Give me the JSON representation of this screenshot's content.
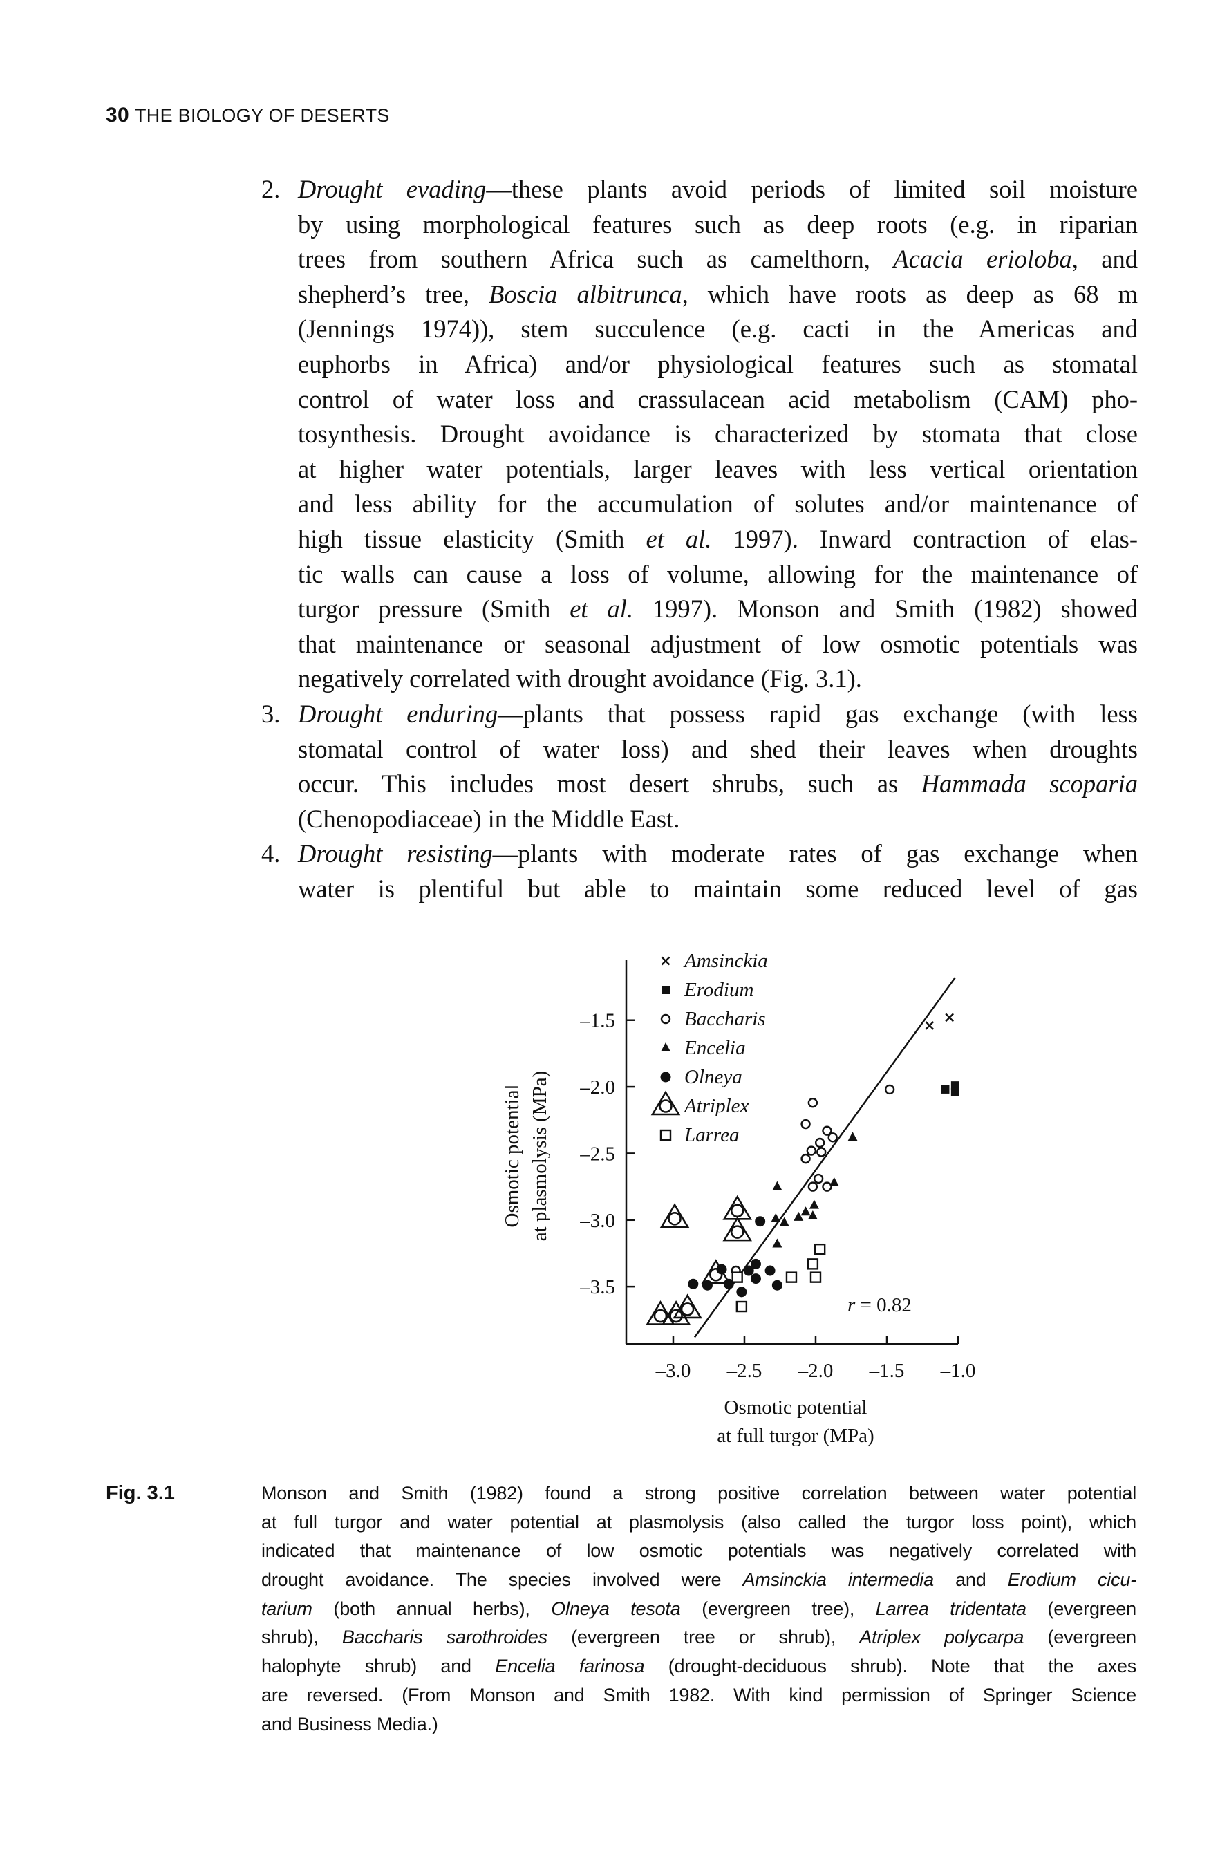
{
  "header": {
    "page_number": "30",
    "running_title": "THE BIOLOGY OF DESERTS"
  },
  "body": {
    "items": [
      {
        "number": "2.",
        "lines": [
          [
            {
              "t": "Drought evading",
              "i": true
            },
            {
              "t": "—these plants avoid periods of limited soil moisture"
            }
          ],
          [
            {
              "t": "by using morphological features such as deep roots (e.g. in riparian"
            }
          ],
          [
            {
              "t": "trees from southern Africa such as camelthorn, "
            },
            {
              "t": "Acacia erioloba",
              "i": true
            },
            {
              "t": ", and"
            }
          ],
          [
            {
              "t": "shepherd’s tree, "
            },
            {
              "t": "Boscia albitrunca",
              "i": true
            },
            {
              "t": ", which have roots as deep as 68 m"
            }
          ],
          [
            {
              "t": "(Jennings 1974)), stem succulence (e.g. cacti in the Americas and"
            }
          ],
          [
            {
              "t": "euphorbs in Africa) and/or physiological features such as stomatal"
            }
          ],
          [
            {
              "t": "control of water loss and crassulacean acid metabolism (CAM) pho-"
            }
          ],
          [
            {
              "t": "tosynthesis. Drought avoidance is characterized by stomata that close"
            }
          ],
          [
            {
              "t": "at higher water potentials, larger leaves with less vertical orientation"
            }
          ],
          [
            {
              "t": "and less ability for the accumulation of solutes and/or maintenance of"
            }
          ],
          [
            {
              "t": "high tissue elasticity (Smith "
            },
            {
              "t": "et al.",
              "i": true
            },
            {
              "t": " 1997). Inward contraction of elas-"
            }
          ],
          [
            {
              "t": "tic walls can cause a loss of volume, allowing for the maintenance of"
            }
          ],
          [
            {
              "t": "turgor pressure (Smith "
            },
            {
              "t": "et al.",
              "i": true
            },
            {
              "t": " 1997). Monson and Smith (1982) showed"
            }
          ],
          [
            {
              "t": "that maintenance or seasonal adjustment of low osmotic potentials was"
            }
          ],
          [
            {
              "t": "negatively correlated with drought avoidance (Fig. 3.1)."
            }
          ]
        ]
      },
      {
        "number": "3.",
        "lines": [
          [
            {
              "t": "Drought enduring",
              "i": true
            },
            {
              "t": "—plants that possess rapid gas exchange (with less"
            }
          ],
          [
            {
              "t": "stomatal control of water loss) and shed their leaves when droughts"
            }
          ],
          [
            {
              "t": "occur. This includes most desert shrubs, such as "
            },
            {
              "t": "Hammada scoparia",
              "i": true
            }
          ],
          [
            {
              "t": "(Chenopodiaceae) in the Middle East."
            }
          ]
        ]
      },
      {
        "number": "4.",
        "lines": [
          [
            {
              "t": "Drought resisting",
              "i": true
            },
            {
              "t": "—plants with moderate rates of gas exchange when"
            }
          ],
          [
            {
              "t": "water is plentiful but able to maintain some reduced level of gas"
            }
          ]
        ],
        "continues": true
      }
    ]
  },
  "figure": {
    "label": "Fig. 3.1",
    "caption_lines": [
      [
        {
          "t": "Monson and Smith (1982) found a strong positive correlation between water potential"
        }
      ],
      [
        {
          "t": "at full turgor and water potential at plasmolysis (also called the turgor loss point), which"
        }
      ],
      [
        {
          "t": "indicated that maintenance of low osmotic potentials was negatively correlated with"
        }
      ],
      [
        {
          "t": "drought avoidance. The species involved were "
        },
        {
          "t": "Amsinckia intermedia",
          "i": true
        },
        {
          "t": " and "
        },
        {
          "t": "Erodium cicu-",
          "i": true
        }
      ],
      [
        {
          "t": "tarium",
          "i": true
        },
        {
          "t": " (both annual herbs), "
        },
        {
          "t": "Olneya tesota",
          "i": true
        },
        {
          "t": " (evergreen tree), "
        },
        {
          "t": "Larrea tridentata",
          "i": true
        },
        {
          "t": " (evergreen"
        }
      ],
      [
        {
          "t": "shrub), "
        },
        {
          "t": "Baccharis sarothroides",
          "i": true
        },
        {
          "t": " (evergreen tree or shrub), "
        },
        {
          "t": "Atriplex polycarpa",
          "i": true
        },
        {
          "t": " (evergreen"
        }
      ],
      [
        {
          "t": "halophyte shrub) and "
        },
        {
          "t": "Encelia farinosa",
          "i": true
        },
        {
          "t": " (drought-deciduous shrub). Note that the axes"
        }
      ],
      [
        {
          "t": "are reversed. (From Monson and Smith 1982. With kind permission of Springer Science"
        }
      ],
      [
        {
          "t": "and Business Media.)"
        }
      ]
    ]
  },
  "chart_data": {
    "type": "scatter",
    "xlabel": [
      "Osmotic potential",
      "at full turgor (MPa)"
    ],
    "ylabel": [
      "Osmotic potential",
      "at plasmolysis (MPa)"
    ],
    "xlim": [
      -3.33,
      -1.0
    ],
    "ylim": [
      -3.93,
      -1.05
    ],
    "xticks": [
      -3.0,
      -2.5,
      -2.0,
      -1.5,
      -1.0
    ],
    "xtick_labels": [
      "–3.0",
      "–2.5",
      "–2.0",
      "–1.5",
      "–1.0"
    ],
    "yticks": [
      -1.5,
      -2.0,
      -2.5,
      -3.0,
      -3.5
    ],
    "ytick_labels": [
      "–1.5",
      "–2.0",
      "–2.5",
      "–3.0",
      "–3.5"
    ],
    "grid": false,
    "legend_position": "top-left",
    "annotation": {
      "r_label": "r",
      "r_value": " = 0.82"
    },
    "regression_line": {
      "x": [
        -2.85,
        -1.02
      ],
      "y": [
        -3.88,
        -1.18
      ]
    },
    "series": [
      {
        "name": "Amsinckia",
        "marker": "cross",
        "points": [
          [
            -1.2,
            -1.54
          ],
          [
            -1.06,
            -1.48
          ]
        ]
      },
      {
        "name": "Erodium",
        "marker": "filled-square",
        "points": [
          [
            -1.09,
            -2.02
          ],
          [
            -1.02,
            -1.99
          ],
          [
            -1.02,
            -2.04
          ]
        ]
      },
      {
        "name": "Baccharis",
        "marker": "open-circle",
        "points": [
          [
            -1.48,
            -2.02
          ],
          [
            -2.02,
            -2.12
          ],
          [
            -2.07,
            -2.28
          ],
          [
            -1.92,
            -2.33
          ],
          [
            -1.88,
            -2.38
          ],
          [
            -1.97,
            -2.42
          ],
          [
            -2.03,
            -2.48
          ],
          [
            -1.96,
            -2.49
          ],
          [
            -2.07,
            -2.54
          ],
          [
            -1.98,
            -2.69
          ],
          [
            -2.02,
            -2.75
          ],
          [
            -1.92,
            -2.75
          ],
          [
            -2.56,
            -3.38
          ]
        ]
      },
      {
        "name": "Encelia",
        "marker": "filled-triangle",
        "points": [
          [
            -1.74,
            -2.38
          ],
          [
            -2.27,
            -2.75
          ],
          [
            -1.87,
            -2.72
          ],
          [
            -2.01,
            -2.89
          ],
          [
            -2.07,
            -2.94
          ],
          [
            -2.02,
            -2.97
          ],
          [
            -2.12,
            -2.98
          ],
          [
            -2.28,
            -2.99
          ],
          [
            -2.22,
            -3.02
          ],
          [
            -2.27,
            -3.18
          ]
        ]
      },
      {
        "name": "Olneya",
        "marker": "filled-circle",
        "points": [
          [
            -2.39,
            -3.01
          ],
          [
            -2.42,
            -3.33
          ],
          [
            -2.32,
            -3.38
          ],
          [
            -2.47,
            -3.38
          ],
          [
            -2.66,
            -3.37
          ],
          [
            -2.42,
            -3.44
          ],
          [
            -2.86,
            -3.48
          ],
          [
            -2.76,
            -3.49
          ],
          [
            -2.61,
            -3.48
          ],
          [
            -2.27,
            -3.49
          ],
          [
            -2.52,
            -3.54
          ]
        ]
      },
      {
        "name": "Atriplex",
        "marker": "triangle-circle",
        "points": [
          [
            -2.99,
            -2.99
          ],
          [
            -2.55,
            -2.93
          ],
          [
            -2.55,
            -3.09
          ],
          [
            -2.7,
            -3.41
          ],
          [
            -2.9,
            -3.67
          ],
          [
            -3.09,
            -3.72
          ],
          [
            -2.98,
            -3.72
          ]
        ]
      },
      {
        "name": "Larrea",
        "marker": "open-square",
        "points": [
          [
            -1.97,
            -3.22
          ],
          [
            -2.02,
            -3.33
          ],
          [
            -2.0,
            -3.43
          ],
          [
            -2.17,
            -3.43
          ],
          [
            -2.55,
            -3.43
          ],
          [
            -2.52,
            -3.65
          ]
        ]
      }
    ]
  }
}
